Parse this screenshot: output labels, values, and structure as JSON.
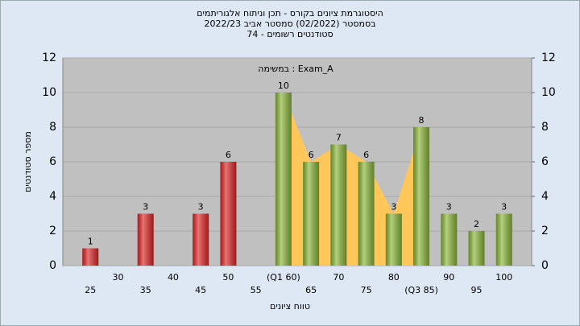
{
  "chart_data": {
    "type": "bar",
    "title": "היסטוגרמת ציונים בקורס - תכן וניתוח אלגוריתמים",
    "subtitle": "בסמסטר  (02/2022)  סמסטר אביב 2022/23",
    "subtitle2": "סטודנטים רשומים - 74",
    "annotation": "במשימה : Exam_A",
    "x_label": "טווח ציונים",
    "y_label": "מספר סטודנטים",
    "categories": [
      "25",
      "30",
      "35",
      "40",
      "45",
      "50",
      "55",
      "(Q1 60)",
      "65",
      "70",
      "75",
      "80",
      "(Q3 85)",
      "90",
      "95",
      "100"
    ],
    "values": [
      1,
      null,
      3,
      null,
      3,
      6,
      null,
      10,
      6,
      7,
      6,
      3,
      8,
      3,
      2,
      3
    ],
    "colors": [
      "#e02828",
      null,
      "#e02828",
      null,
      "#e02828",
      "#e02828",
      null,
      "#8cb83a",
      "#8cb83a",
      "#8cb83a",
      "#8cb83a",
      "#8cb83a",
      "#8cb83a",
      "#8cb83a",
      "#8cb83a",
      "#8cb83a"
    ],
    "area_color": "#ffc65a",
    "ylim": [
      0,
      12
    ],
    "yticks": [
      0,
      2,
      4,
      6,
      8,
      10,
      12
    ],
    "y2lim": [
      0,
      12
    ],
    "y2ticks": [
      0,
      2,
      4,
      6,
      8,
      10,
      12
    ],
    "grid": true
  }
}
